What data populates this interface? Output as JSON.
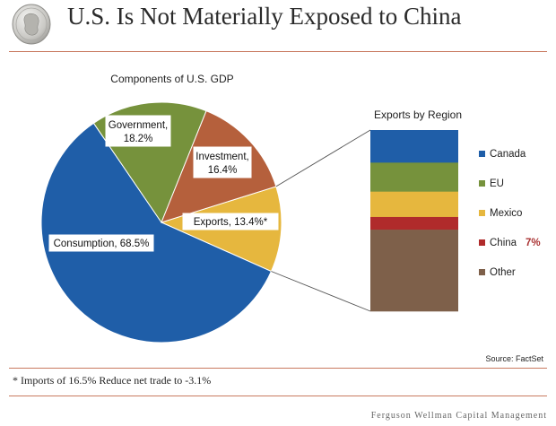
{
  "header": {
    "title": "U.S. Is Not Materially Exposed to China"
  },
  "chart_data": [
    {
      "type": "pie",
      "title": "Components of U.S. GDP",
      "slices": [
        {
          "name": "Consumption",
          "label": "Consumption, 68.5%",
          "value": 68.5,
          "color": "#1f5ea8"
        },
        {
          "name": "Government",
          "label": "Government, 18.2%",
          "value": 18.2,
          "color": "#76923c"
        },
        {
          "name": "Investment",
          "label": "Investment, 16.4%",
          "value": 16.4,
          "color": "#b5603c"
        },
        {
          "name": "Exports",
          "label": "Exports, 13.4%*",
          "value": 13.4,
          "color": "#e6b73e"
        }
      ]
    },
    {
      "type": "bar",
      "title": "Exports by Region",
      "stacked": true,
      "segments": [
        {
          "name": "Canada",
          "value": 18,
          "color": "#1f5ea8"
        },
        {
          "name": "EU",
          "value": 16,
          "color": "#76923c"
        },
        {
          "name": "Mexico",
          "value": 14,
          "color": "#e6b73e"
        },
        {
          "name": "China",
          "value": 7,
          "color": "#b02b2b",
          "annotation": "7%"
        },
        {
          "name": "Other",
          "value": 45,
          "color": "#7e604a"
        }
      ]
    }
  ],
  "source": "Source: FactSet",
  "footnote": "* Imports of 16.5% Reduce net trade to -3.1%",
  "brand": "Ferguson Wellman Capital Management"
}
